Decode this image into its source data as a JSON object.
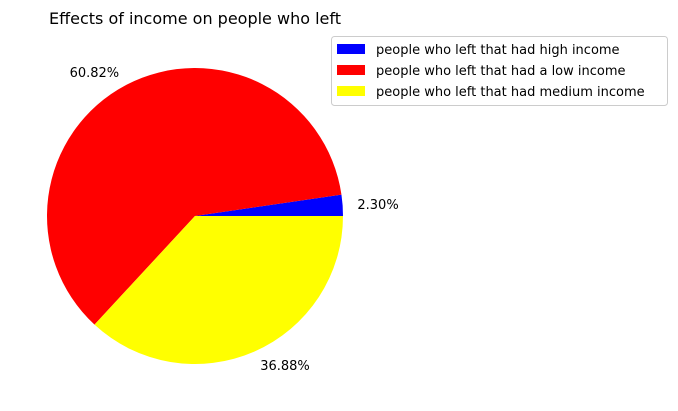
{
  "chart_data": {
    "type": "pie",
    "title": "Effects of income on people who left",
    "slices": [
      {
        "label": "people who left that had high income",
        "value": 2.3,
        "display": "2.30%",
        "color": "#0000ff"
      },
      {
        "label": "people who left that had a low income",
        "value": 60.82,
        "display": "60.82%",
        "color": "#ff0000"
      },
      {
        "label": "people who left that had medium income",
        "value": 36.88,
        "display": "36.88%",
        "color": "#ffff00"
      }
    ],
    "start_angle_deg": 0,
    "direction": "counterclockwise",
    "legend_position": "top-right"
  }
}
